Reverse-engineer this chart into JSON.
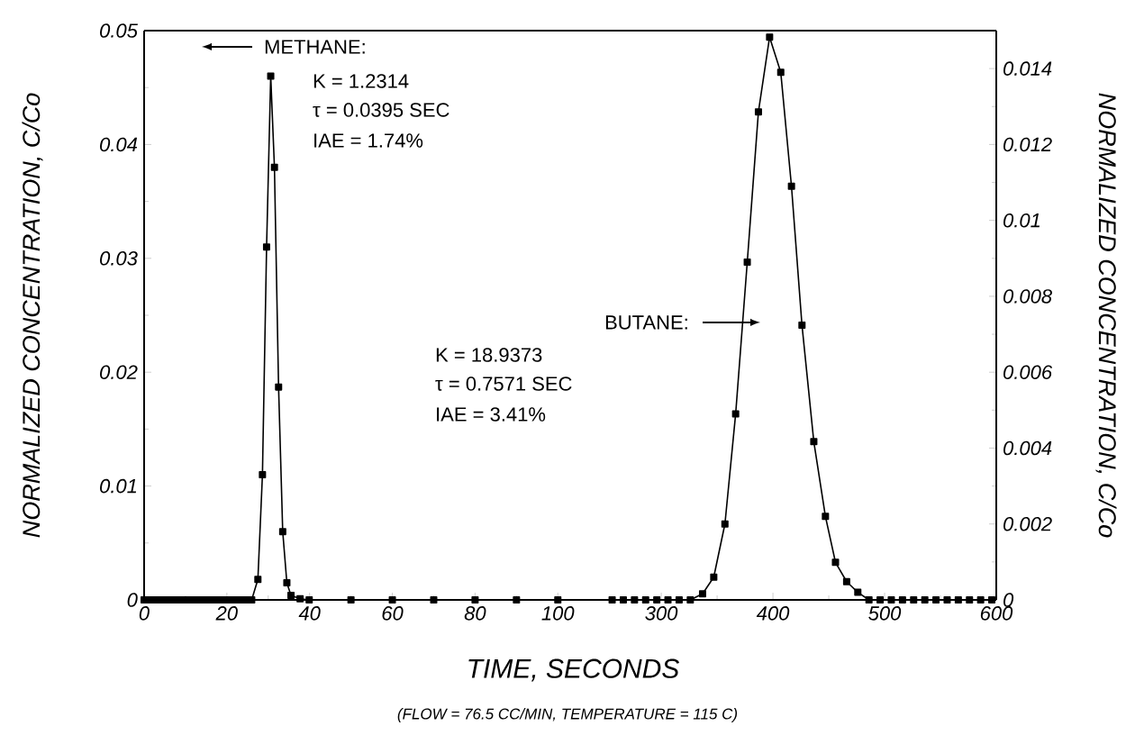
{
  "chart_data": [
    {
      "type": "line",
      "xlabel": "TIME, SECONDS",
      "ylabel": "NORMALIZED CONCENTRATION, C/Co",
      "xlim": [
        0,
        108
      ],
      "xticks": [
        0,
        20,
        40,
        60,
        80,
        100
      ],
      "ylim": [
        0,
        0.05
      ],
      "yticks": [
        0,
        0.01,
        0.02,
        0.03,
        0.04,
        0.05
      ],
      "marker": "square",
      "line_style": "solid",
      "annotations": [
        "METHANE:",
        "K = 1.2314",
        "τ = 0.0395 SEC",
        "IAE = 1.74%",
        "(FLOW = 76.5 CC/MIN, TEMPERATURE = 115 C)"
      ],
      "series": [
        {
          "color": "#000000",
          "x": [
            0,
            1,
            2,
            3,
            4,
            5,
            6,
            7,
            8,
            9,
            10,
            11,
            12,
            13,
            14,
            15,
            16,
            17,
            18,
            19,
            20,
            21,
            22,
            23,
            24,
            25,
            26,
            27.5,
            28.6,
            29.6,
            30.6,
            31.5,
            32.5,
            33.5,
            34.5,
            35.5,
            37.7,
            39.9,
            50,
            60,
            70,
            80,
            90,
            100
          ],
          "values": [
            0,
            0,
            0,
            0,
            0,
            0,
            0,
            0,
            0,
            0,
            0,
            0,
            0,
            0,
            0,
            0,
            0,
            0,
            0,
            0,
            0,
            0,
            0,
            0,
            0,
            0,
            0,
            0.0018,
            0.011,
            0.031,
            0.046,
            0.038,
            0.0187,
            0.006,
            0.0015,
            0.0004,
            0.0001,
            0,
            0,
            0,
            0,
            0,
            0,
            0
          ]
        }
      ]
    },
    {
      "type": "line",
      "y2label": "NORMALIZED CONCENTRATION, C/Co",
      "xlim": [
        237,
        600
      ],
      "xticks": [
        300,
        400,
        500,
        600
      ],
      "y2lim": [
        0,
        0.015
      ],
      "y2ticks": [
        0,
        0.002,
        0.004,
        0.006,
        0.008,
        0.01,
        0.012,
        0.014
      ],
      "marker": "square",
      "line_style": "solid",
      "annotations": [
        "BUTANE:",
        "K = 18.9373",
        "τ = 0.7571 SEC",
        "IAE = 3.41%"
      ],
      "series": [
        {
          "axis": "y2",
          "color": "#000000",
          "x": [
            256,
            266,
            276,
            286,
            296,
            306,
            316,
            326,
            337,
            347,
            357,
            366.6,
            377,
            387,
            397,
            407,
            416.6,
            426,
            436.6,
            447,
            456,
            466,
            476,
            486,
            496,
            506,
            516,
            526,
            536,
            546,
            556,
            566,
            576,
            586,
            596
          ],
          "values": [
            0,
            0,
            0,
            0,
            0,
            0,
            0,
            0,
            0.00016,
            0.0006,
            0.002,
            0.0049,
            0.0089,
            0.01286,
            0.01483,
            0.0139,
            0.0109,
            0.00724,
            0.00417,
            0.0022,
            0.00099,
            0.00048,
            0.0002,
            0,
            0,
            0,
            0,
            0,
            0,
            0,
            0,
            0,
            0,
            0,
            0
          ]
        }
      ]
    }
  ]
}
